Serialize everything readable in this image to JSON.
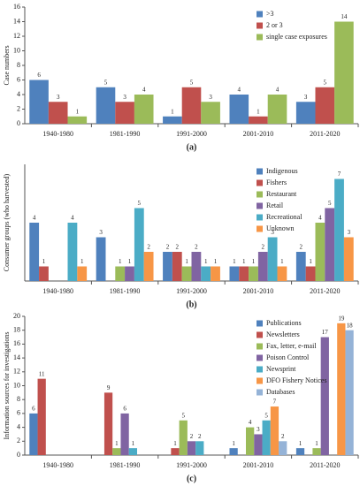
{
  "chart_data": [
    {
      "type": "bar",
      "label": "(a)",
      "ylabel": "Case numbers",
      "categories": [
        "1940-1980",
        "1981-1990",
        "1991-2000",
        "2001-2010",
        "2011-2020"
      ],
      "series": [
        {
          "name": ">3",
          "color": "#4f81bd",
          "values": [
            6,
            5,
            1,
            4,
            3
          ]
        },
        {
          "name": "2 or 3",
          "color": "#c0504d",
          "values": [
            3,
            3,
            5,
            1,
            5
          ]
        },
        {
          "name": "single case exposures",
          "color": "#9bbb59",
          "values": [
            1,
            4,
            3,
            4,
            14
          ]
        }
      ],
      "ylim": [
        0,
        16
      ],
      "yticks": [
        0,
        2,
        4,
        6,
        8,
        10,
        12,
        14,
        16
      ],
      "legend": "upper right"
    },
    {
      "type": "bar",
      "label": "(b)",
      "ylabel": "Consumer groups (who harvested)",
      "categories": [
        "1940-1980",
        "1981-1990",
        "1991-2000",
        "2001-2010",
        "2011-2020"
      ],
      "series": [
        {
          "name": "Indigenous",
          "color": "#4f81bd",
          "values": [
            4,
            3,
            2,
            1,
            2
          ]
        },
        {
          "name": "Fishers",
          "color": "#c0504d",
          "values": [
            1,
            null,
            2,
            1,
            1
          ]
        },
        {
          "name": "Restaurant",
          "color": "#9bbb59",
          "values": [
            null,
            1,
            1,
            1,
            4
          ]
        },
        {
          "name": "Retail",
          "color": "#8064a2",
          "values": [
            null,
            1,
            2,
            2,
            5
          ]
        },
        {
          "name": "Recreational",
          "color": "#4bacc6",
          "values": [
            4,
            5,
            1,
            3,
            7
          ]
        },
        {
          "name": "Unknown",
          "color": "#f79646",
          "values": [
            1,
            2,
            1,
            1,
            3
          ]
        }
      ],
      "ylim": [
        0,
        8
      ],
      "legend": "upper right"
    },
    {
      "type": "bar",
      "label": "(c)",
      "ylabel": "Information sources for investigations",
      "categories": [
        "1940-1980",
        "1981-1990",
        "1991-2000",
        "2001-2010",
        "2011-2020"
      ],
      "series": [
        {
          "name": "Publications",
          "color": "#4f81bd",
          "values": [
            6,
            null,
            null,
            1,
            1
          ]
        },
        {
          "name": "Newsletters",
          "color": "#c0504d",
          "values": [
            11,
            9,
            1,
            null,
            null
          ]
        },
        {
          "name": "Fax, letter, e-mail",
          "color": "#9bbb59",
          "values": [
            null,
            1,
            5,
            4,
            1
          ]
        },
        {
          "name": "Poison Control",
          "color": "#8064a2",
          "values": [
            null,
            6,
            2,
            3,
            17
          ]
        },
        {
          "name": "Newsprint",
          "color": "#4bacc6",
          "values": [
            null,
            1,
            2,
            5,
            null
          ]
        },
        {
          "name": "DFO Fishery Notices",
          "color": "#f79646",
          "values": [
            null,
            null,
            null,
            7,
            19
          ]
        },
        {
          "name": "Databases",
          "color": "#95b3d7",
          "values": [
            null,
            null,
            null,
            2,
            18
          ]
        }
      ],
      "ylim": [
        0,
        20
      ],
      "yticks": [
        0,
        2,
        4,
        6,
        8,
        10,
        12,
        14,
        16,
        18,
        20
      ],
      "legend": "upper right"
    }
  ]
}
